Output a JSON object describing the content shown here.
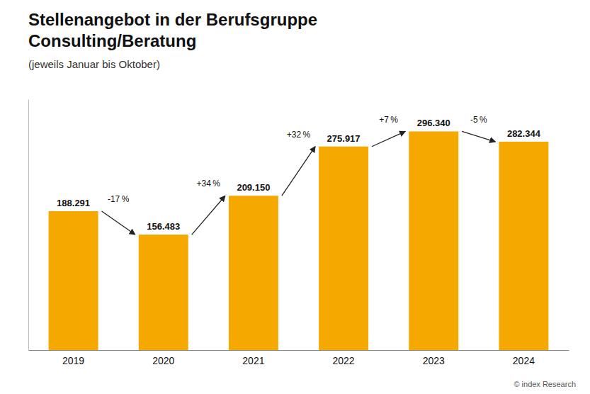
{
  "chart_data": {
    "type": "bar",
    "title": "Stellenangebot in der Berufsgruppe\nConsulting/Beratung",
    "subtitle": "(jeweils Januar bis Oktober)",
    "categories": [
      "2019",
      "2020",
      "2021",
      "2022",
      "2023",
      "2024"
    ],
    "values": [
      188291,
      156483,
      209150,
      275917,
      296340,
      282344
    ],
    "value_labels": [
      "188.291",
      "156.483",
      "209.150",
      "275.917",
      "296.340",
      "282.344"
    ],
    "data_labels": true,
    "color": "#F5A800",
    "ylim": [
      0,
      340000
    ],
    "tick_labels": "x",
    "grid": false,
    "annotations": [
      "-17 %",
      "+34 %",
      "+32 %",
      "+7 %",
      "-5 %"
    ],
    "source": "© index Research"
  }
}
